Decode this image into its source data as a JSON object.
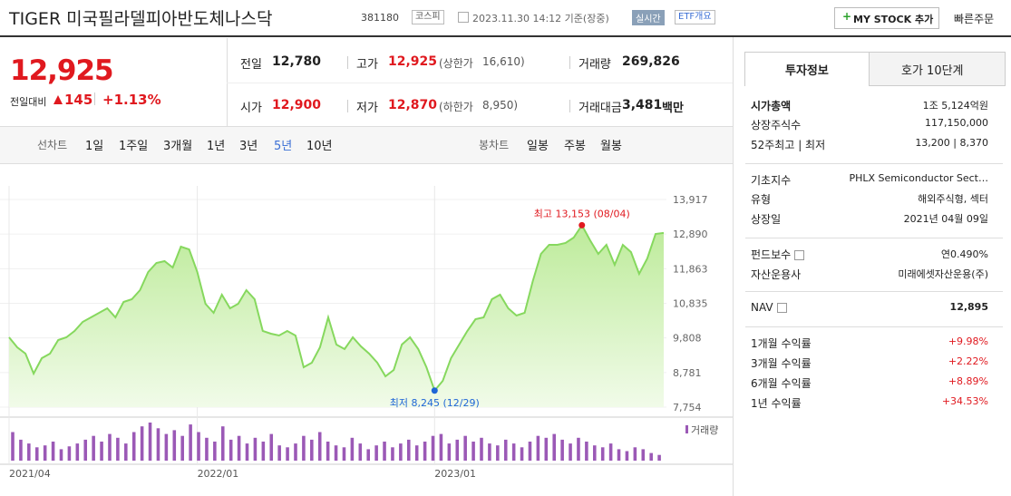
{
  "header": {
    "name": "TIGER 미국필라델피아반도체나스닥",
    "code": "381180",
    "market": "코스피",
    "datetime": "2023.11.30 14:12 기준(장중)",
    "realtime": "실시간",
    "etf_overview": "ETF개요",
    "my_stock": "MY STOCK 추가",
    "quick_order": "빠른주문"
  },
  "price": {
    "current": "12,925",
    "change_label": "전일대비",
    "change": "145",
    "change_pct": "+1.13%"
  },
  "stats": [
    {
      "label": "전일",
      "value": "12,780"
    },
    {
      "label": "고가",
      "value": "12,925",
      "note_label": "(상한가",
      "note_value": "16,610)"
    },
    {
      "label": "거래량",
      "value": "269,826"
    },
    {
      "label": "시가",
      "value": "12,900"
    },
    {
      "label": "저가",
      "value": "12,870",
      "note_label": "(하한가",
      "note_value": "8,950)"
    },
    {
      "label": "거래대금",
      "value": "3,481",
      "unit": "백만"
    }
  ],
  "tabs": {
    "line_label": "선차트",
    "line": [
      "1일",
      "1주일",
      "3개월",
      "1년",
      "3년",
      "5년",
      "10년"
    ],
    "candle_label": "봉차트",
    "candle": [
      "일봉",
      "주봉",
      "월봉"
    ]
  },
  "chart_data": {
    "type": "line",
    "series": [
      {
        "name": "거래량",
        "color": "#9b59b6",
        "values": [
          30,
          22,
          18,
          14,
          16,
          20,
          12,
          15,
          18,
          22,
          26,
          20,
          28,
          24,
          18,
          30,
          36,
          40,
          34,
          28,
          32,
          26,
          38,
          30,
          24,
          20,
          36,
          22,
          26,
          18,
          24,
          20,
          28,
          16,
          14,
          18,
          26,
          22,
          30,
          20,
          16,
          14,
          24,
          18,
          12,
          16,
          20,
          14,
          18,
          22,
          16,
          20,
          26,
          28,
          18,
          22,
          26,
          20,
          24,
          18,
          16,
          22,
          18,
          14,
          20,
          26,
          24,
          28,
          22,
          18,
          24,
          20,
          16,
          14,
          18,
          12,
          10,
          14,
          12,
          8,
          6
        ]
      },
      {
        "name": "price",
        "color": "#86d85e",
        "values": [
          9826,
          9530,
          9342,
          8750,
          9208,
          9342,
          9746,
          9826,
          10015,
          10284,
          10419,
          10553,
          10688,
          10419,
          10876,
          10957,
          11226,
          11764,
          12033,
          12087,
          11899,
          12518,
          12437,
          11764,
          10822,
          10553,
          11091,
          10688,
          10822,
          11226,
          10957,
          10015,
          9934,
          9880,
          10015,
          9880,
          8939,
          9073,
          9530,
          10419,
          9611,
          9476,
          9826,
          9557,
          9342,
          9073,
          8670,
          8858,
          9611,
          9826,
          9476,
          8939,
          8245,
          8535,
          9208,
          9611,
          10015,
          10365,
          10419,
          10957,
          11091,
          10688,
          10473,
          10553,
          11495,
          12302,
          12571,
          12571,
          12625,
          12787,
          13153,
          12706,
          12302,
          12571,
          11979,
          12571,
          12356,
          11710,
          12168,
          12894,
          12925
        ]
      }
    ],
    "xlim": [
      0,
      80
    ],
    "xticks": [
      {
        "value": 0,
        "label": "2021/04"
      },
      {
        "value": 23,
        "label": "2022/01"
      },
      {
        "value": 52,
        "label": "2023/01"
      }
    ],
    "ylim": [
      7754,
      13917
    ],
    "yticks": [
      {
        "value": 13917,
        "label": "13,917"
      },
      {
        "value": 12890,
        "label": "12,890"
      },
      {
        "value": 11863,
        "label": "11,863"
      },
      {
        "value": 10835,
        "label": "10,835"
      },
      {
        "value": 9808,
        "label": "9,808"
      },
      {
        "value": 8781,
        "label": "8,781"
      },
      {
        "value": 7754,
        "label": "7,754"
      }
    ],
    "annotations": [
      {
        "text": "최고 13,153 (08/04)",
        "index": 70,
        "color": "#e0191f"
      },
      {
        "text": "최저 8,245 (12/29)",
        "index": 52,
        "color": "#1f66d6"
      }
    ],
    "grid": true
  },
  "side": {
    "tabs": [
      "투자정보",
      "호가 10단계"
    ],
    "rows": [
      {
        "label": "시가총액",
        "value": "1조 5,124억원"
      },
      {
        "label": "상장주식수",
        "value": "117,150,000"
      },
      {
        "label": "52주최고 | 최저",
        "value": "13,200 | 8,370"
      },
      {
        "label": "기초지수",
        "value": "PHLX Semiconductor Sect…"
      },
      {
        "label": "유형",
        "value": "해외주식형, 섹터"
      },
      {
        "label": "상장일",
        "value": "2021년 04월 09일"
      },
      {
        "label": "펀드보수",
        "value": "연0.490%"
      },
      {
        "label": "자산운용사",
        "value": "미래에셋자산운용(주)"
      },
      {
        "label": "NAV",
        "value": "12,895"
      },
      {
        "label": "1개월 수익률",
        "value": "+9.98%"
      },
      {
        "label": "3개월 수익률",
        "value": "+2.22%"
      },
      {
        "label": "6개월 수익률",
        "value": "+8.89%"
      },
      {
        "label": "1년 수익률",
        "value": "+34.53%"
      }
    ]
  }
}
